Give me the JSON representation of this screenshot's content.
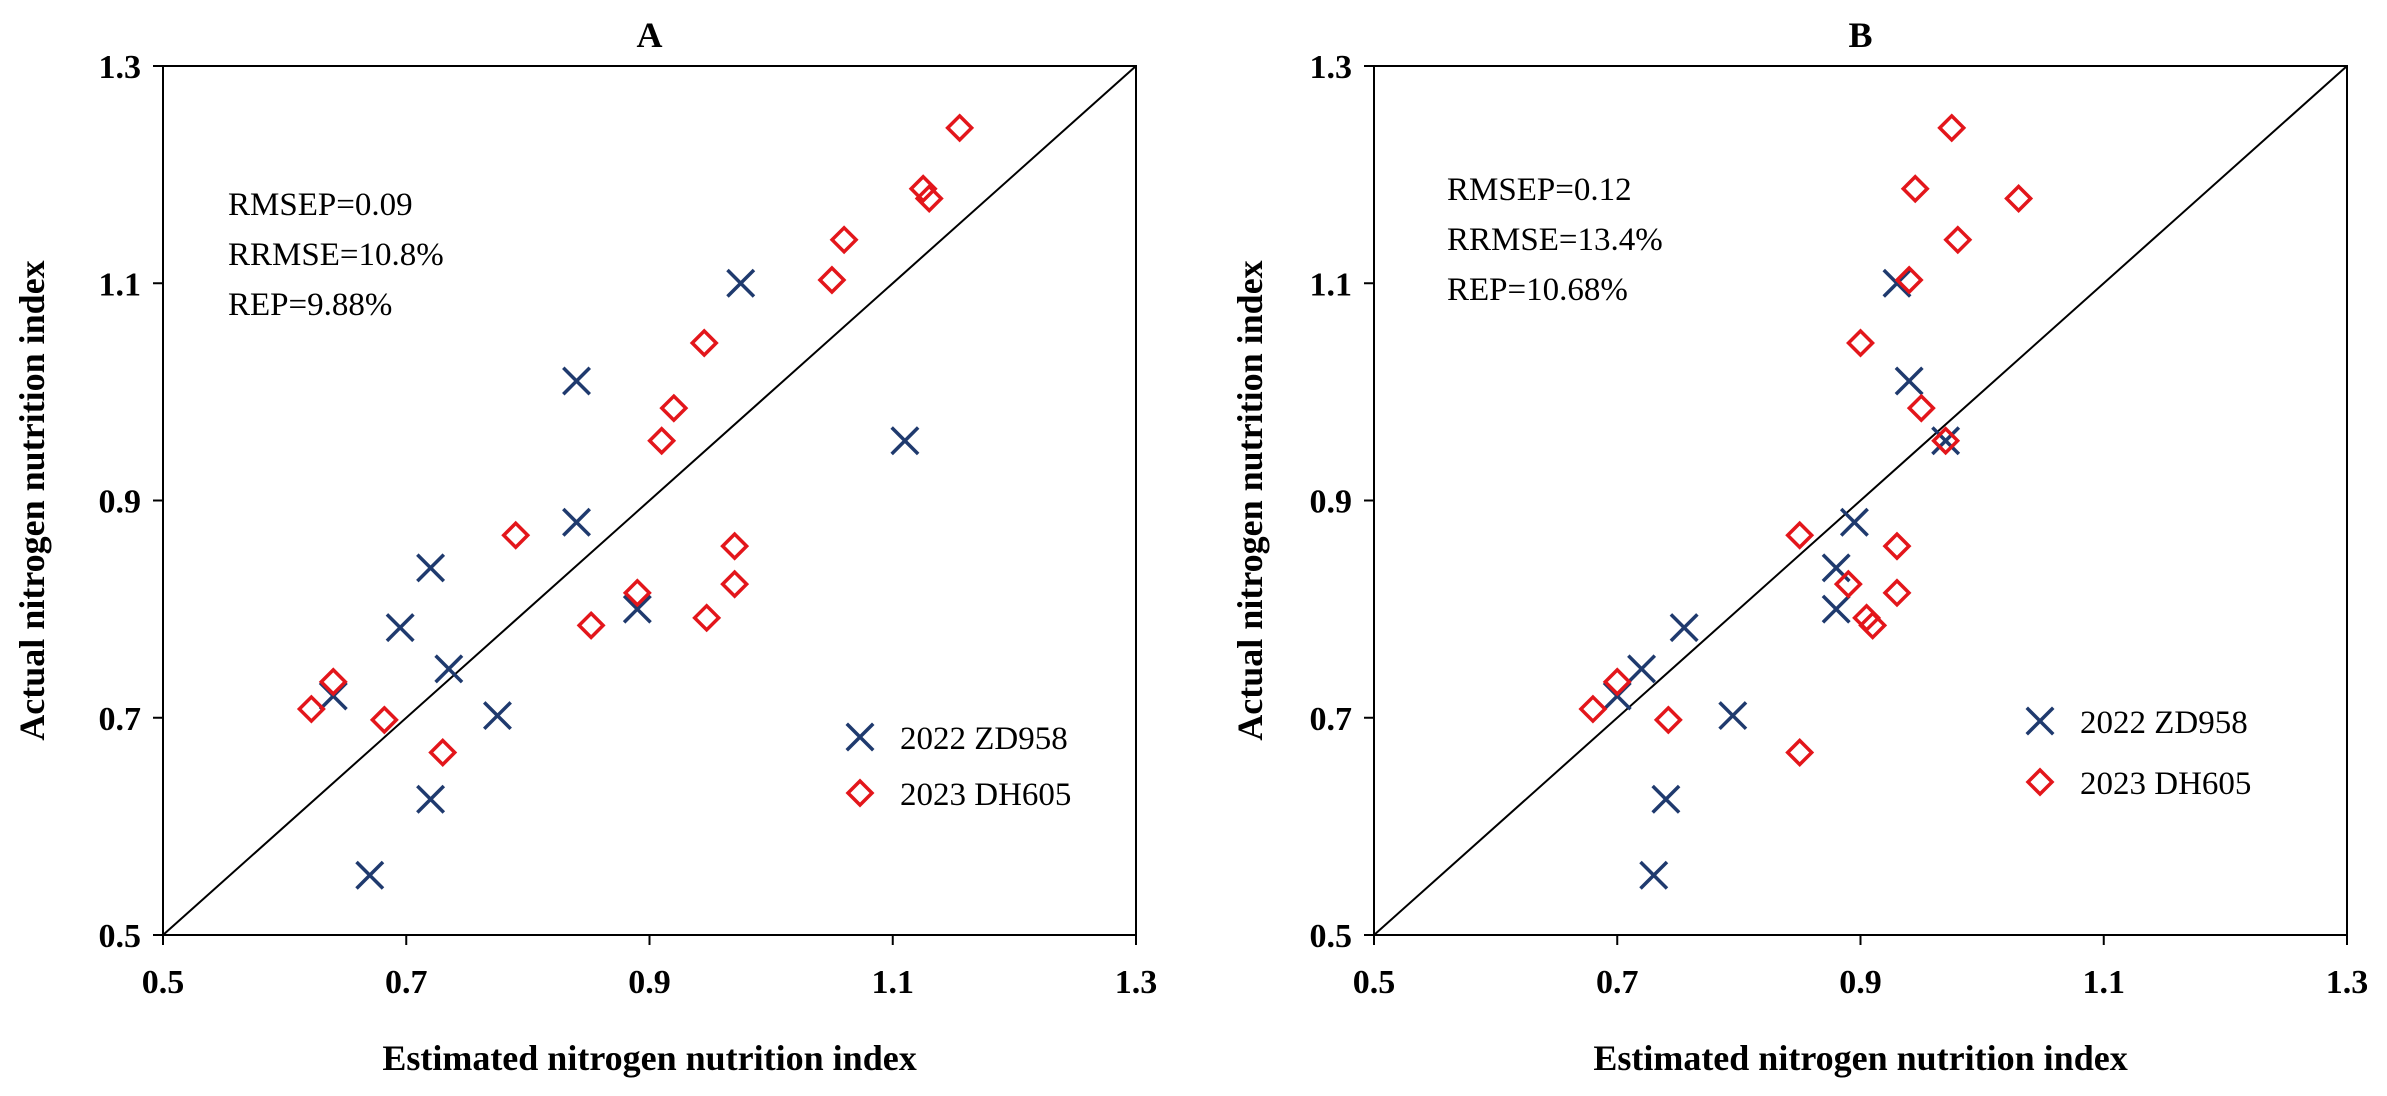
{
  "chart_data": [
    {
      "type": "scatter",
      "title": "A",
      "xlabel": "Estimated nitrogen nutrition index",
      "ylabel": "Actual nitrogen nutrition index",
      "xlim": [
        0.5,
        1.3
      ],
      "ylim": [
        0.5,
        1.3
      ],
      "xticks": [
        "0.5",
        "0.7",
        "0.9",
        "1.1",
        "1.3"
      ],
      "yticks": [
        "0.5",
        "0.7",
        "0.9",
        "1.1",
        "1.3"
      ],
      "reference_line": "1:1",
      "stats": [
        "RMSEP=0.09",
        "RRMSE=10.8%",
        "REP=9.88%"
      ],
      "legend_position": "bottom-right",
      "series": [
        {
          "name": "2022 ZD958",
          "marker": "x",
          "color": "#1f3a6e",
          "points": [
            [
              0.64,
              0.72
            ],
            [
              0.67,
              0.555
            ],
            [
              0.695,
              0.783
            ],
            [
              0.72,
              0.838
            ],
            [
              0.72,
              0.625
            ],
            [
              0.735,
              0.745
            ],
            [
              0.775,
              0.702
            ],
            [
              0.84,
              1.01
            ],
            [
              0.84,
              0.88
            ],
            [
              0.89,
              0.8
            ],
            [
              0.975,
              1.1
            ],
            [
              1.11,
              0.955
            ]
          ]
        },
        {
          "name": "2023 DH605",
          "marker": "diamond",
          "color": "#e3161b",
          "points": [
            [
              0.622,
              0.708
            ],
            [
              0.64,
              0.733
            ],
            [
              0.682,
              0.698
            ],
            [
              0.73,
              0.668
            ],
            [
              0.79,
              0.868
            ],
            [
              0.852,
              0.785
            ],
            [
              0.89,
              0.815
            ],
            [
              0.91,
              0.955
            ],
            [
              0.92,
              0.985
            ],
            [
              0.945,
              1.045
            ],
            [
              0.947,
              0.792
            ],
            [
              0.97,
              0.858
            ],
            [
              0.97,
              0.823
            ],
            [
              1.05,
              1.103
            ],
            [
              1.06,
              1.14
            ],
            [
              1.125,
              1.187
            ],
            [
              1.13,
              1.178
            ],
            [
              1.155,
              1.243
            ]
          ]
        }
      ]
    },
    {
      "type": "scatter",
      "title": "B",
      "xlabel": "Estimated nitrogen nutrition index",
      "ylabel": "Actual nitrogen nutrition index",
      "xlim": [
        0.5,
        1.3
      ],
      "ylim": [
        0.5,
        1.3
      ],
      "xticks": [
        "0.5",
        "0.7",
        "0.9",
        "1.1",
        "1.3"
      ],
      "yticks": [
        "0.5",
        "0.7",
        "0.9",
        "1.1",
        "1.3"
      ],
      "reference_line": "1:1",
      "stats": [
        "RMSEP=0.12",
        "RRMSE=13.4%",
        "REP=10.68%"
      ],
      "legend_position": "bottom-right",
      "series": [
        {
          "name": "2022 ZD958",
          "marker": "x",
          "color": "#1f3a6e",
          "points": [
            [
              0.7,
              0.72
            ],
            [
              0.72,
              0.745
            ],
            [
              0.73,
              0.555
            ],
            [
              0.74,
              0.625
            ],
            [
              0.755,
              0.783
            ],
            [
              0.795,
              0.702
            ],
            [
              0.88,
              0.838
            ],
            [
              0.88,
              0.8
            ],
            [
              0.895,
              0.88
            ],
            [
              0.93,
              1.1
            ],
            [
              0.94,
              1.01
            ],
            [
              0.97,
              0.955
            ]
          ]
        },
        {
          "name": "2023 DH605",
          "marker": "diamond",
          "color": "#e3161b",
          "points": [
            [
              0.68,
              0.708
            ],
            [
              0.7,
              0.733
            ],
            [
              0.742,
              0.698
            ],
            [
              0.85,
              0.668
            ],
            [
              0.85,
              0.868
            ],
            [
              0.89,
              0.823
            ],
            [
              0.9,
              1.045
            ],
            [
              0.905,
              0.792
            ],
            [
              0.91,
              0.785
            ],
            [
              0.93,
              0.858
            ],
            [
              0.93,
              0.815
            ],
            [
              0.94,
              1.103
            ],
            [
              0.945,
              1.187
            ],
            [
              0.95,
              0.985
            ],
            [
              0.97,
              0.955
            ],
            [
              0.975,
              1.243
            ],
            [
              0.98,
              1.14
            ],
            [
              1.03,
              1.178
            ]
          ]
        }
      ]
    }
  ]
}
